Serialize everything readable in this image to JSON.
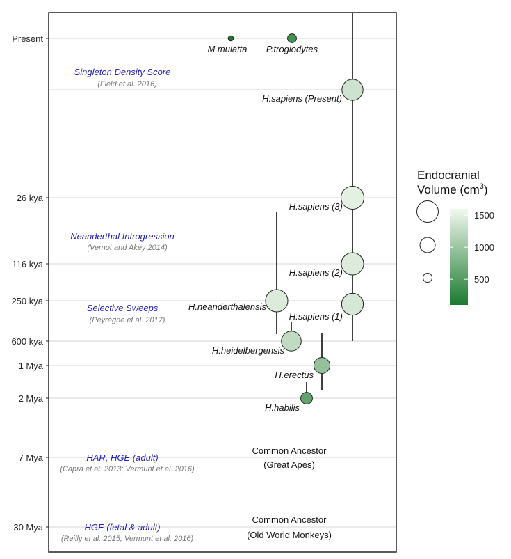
{
  "chart_data": {
    "type": "scatter",
    "y_axis": {
      "tick_labels": [
        "Present",
        "26 kya",
        "116 kya",
        "250 kya",
        "600 kya",
        "1 Mya",
        "2 Mya",
        "7 Mya",
        "30 Mya"
      ]
    },
    "species": [
      {
        "name": "M.mulatta",
        "time": "Present",
        "volume": 90,
        "time_range": null
      },
      {
        "name": "P.troglodytes",
        "time": "Present",
        "volume": 380,
        "time_range": null
      },
      {
        "name": "H.sapiens (Present)",
        "time": "Present",
        "volume": 1350,
        "time_range": [
          "Present",
          "600 kya"
        ]
      },
      {
        "name": "H.sapiens (3)",
        "time": "26 kya",
        "volume": 1500,
        "time_range": null
      },
      {
        "name": "H.sapiens (2)",
        "time": "116 kya",
        "volume": 1450,
        "time_range": null
      },
      {
        "name": "H.sapiens (1)",
        "time": "250 kya",
        "volume": 1400,
        "time_range": null
      },
      {
        "name": "H.neanderthalensis",
        "time": "250 kya",
        "volume": 1450,
        "time_range": [
          "50 kya",
          "550 kya"
        ]
      },
      {
        "name": "H.heidelbergensis",
        "time": "600 kya",
        "volume": 1250,
        "time_range": [
          "400 kya",
          "700 kya"
        ]
      },
      {
        "name": "H.erectus",
        "time": "1 Mya",
        "volume": 950,
        "time_range": [
          "500 kya",
          "1.8 Mya"
        ]
      },
      {
        "name": "H.habilis",
        "time": "2 Mya",
        "volume": 600,
        "time_range": [
          "1.6 Mya",
          "2 Mya"
        ]
      }
    ],
    "annotations": [
      {
        "title": "Singleton Density Score",
        "citation": "(Field et al. 2016)",
        "level": "Present-26 kya"
      },
      {
        "title": "Neanderthal Introgression",
        "citation": "(Vernot and Akey 2014)",
        "level": "26-116 kya"
      },
      {
        "title": "Selective Sweeps",
        "citation": "(Peyrégne et al. 2017)",
        "level": "250-600 kya"
      },
      {
        "title": "HAR, HGE (adult)",
        "citation": "(Capra et al. 2013; Vermunt et al. 2016)",
        "level": "7 Mya"
      },
      {
        "title": "HGE (fetal & adult)",
        "citation": "(Reilly et al. 2015; Vermunt et al. 2016)",
        "level": "30 Mya"
      }
    ],
    "ancestors": [
      {
        "line1": "Common Ancestor",
        "line2": "(Great Apes)",
        "level": "7 Mya"
      },
      {
        "line1": "Common Ancestor",
        "line2": "(Old World Monkeys)",
        "level": "30 Mya"
      }
    ],
    "legend": {
      "title_line1": "Endocranial",
      "title_line2": "Volume (cm",
      "title_sup": "3",
      "title_end": ")",
      "size_values": [
        1500,
        1000,
        500
      ],
      "color_ticks": [
        "1500",
        "1000",
        "500"
      ],
      "color_range": [
        100,
        1600
      ],
      "color_low": "#1a7a2e",
      "color_high": "#f2f8ef"
    },
    "grid": true
  }
}
